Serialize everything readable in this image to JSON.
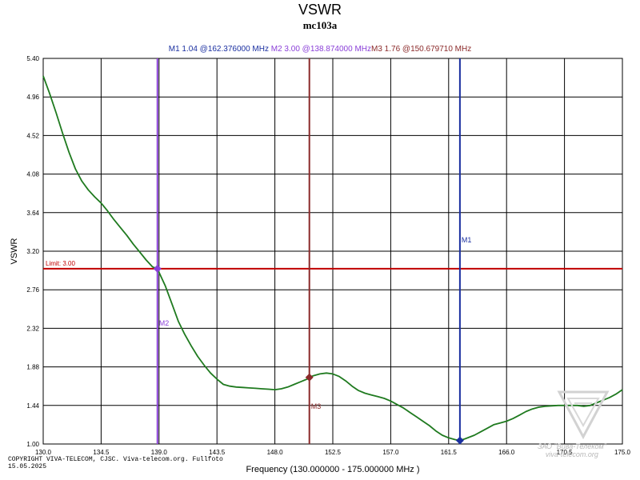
{
  "chart_data": {
    "type": "line",
    "title": "VSWR",
    "subtitle": "mc103a",
    "xlabel": "Frequency (130.000000 - 175.000000 MHz )",
    "ylabel": "VSWR",
    "xlim": [
      130.0,
      175.0
    ],
    "ylim": [
      1.0,
      5.4
    ],
    "x_ticks": [
      130.0,
      134.5,
      139.0,
      143.5,
      148.0,
      152.5,
      157.0,
      161.5,
      166.0,
      170.5,
      175.0
    ],
    "x_tick_labels": [
      "130.0",
      "134.5",
      "139.0",
      "143.5",
      "148.0",
      "152.5",
      "157.0",
      "161.5",
      "166.0",
      "170.5",
      "175.0"
    ],
    "y_ticks": [
      1.0,
      1.44,
      1.88,
      2.32,
      2.76,
      3.2,
      3.64,
      4.08,
      4.52,
      4.96,
      5.4
    ],
    "y_tick_labels": [
      "1.00",
      "1.44",
      "1.88",
      "2.32",
      "2.76",
      "3.20",
      "3.64",
      "4.08",
      "4.52",
      "4.96",
      "5.40"
    ],
    "grid": true,
    "limit": {
      "label": "Limit: 3.00",
      "value": 3.0
    },
    "series": [
      {
        "name": "VSWR",
        "color": "#1f7a1f",
        "x": [
          130.0,
          130.5,
          131.0,
          131.5,
          132.0,
          132.5,
          133.0,
          133.5,
          134.0,
          134.5,
          135.0,
          135.5,
          136.0,
          136.5,
          137.0,
          137.5,
          138.0,
          138.5,
          138.87,
          139.5,
          140.0,
          140.5,
          141.0,
          141.5,
          142.0,
          142.5,
          143.0,
          143.5,
          144.0,
          144.5,
          145.0,
          145.5,
          146.0,
          146.5,
          147.0,
          147.5,
          148.0,
          148.5,
          149.0,
          149.5,
          150.0,
          150.5,
          150.68,
          151.0,
          151.5,
          152.0,
          152.5,
          153.0,
          153.5,
          154.0,
          154.5,
          155.0,
          155.5,
          156.0,
          156.5,
          157.0,
          157.5,
          158.0,
          158.5,
          159.0,
          159.5,
          160.0,
          160.5,
          161.0,
          161.5,
          162.0,
          162.38,
          162.8,
          163.5,
          164.0,
          164.5,
          165.0,
          165.5,
          166.0,
          166.5,
          167.0,
          167.5,
          168.0,
          168.5,
          169.0,
          169.5,
          170.0,
          170.5,
          171.0,
          171.5,
          172.0,
          172.5,
          173.0,
          173.5,
          174.0,
          174.5,
          175.0
        ],
        "values": [
          5.2,
          5.0,
          4.78,
          4.55,
          4.33,
          4.14,
          4.0,
          3.9,
          3.82,
          3.75,
          3.66,
          3.56,
          3.47,
          3.38,
          3.28,
          3.19,
          3.1,
          3.02,
          3.0,
          2.8,
          2.6,
          2.4,
          2.25,
          2.12,
          2.0,
          1.9,
          1.81,
          1.74,
          1.68,
          1.66,
          1.65,
          1.645,
          1.64,
          1.635,
          1.63,
          1.625,
          1.62,
          1.63,
          1.65,
          1.68,
          1.71,
          1.74,
          1.76,
          1.78,
          1.8,
          1.81,
          1.8,
          1.77,
          1.72,
          1.66,
          1.61,
          1.58,
          1.56,
          1.54,
          1.52,
          1.49,
          1.45,
          1.41,
          1.36,
          1.31,
          1.26,
          1.21,
          1.15,
          1.1,
          1.07,
          1.05,
          1.04,
          1.06,
          1.1,
          1.14,
          1.18,
          1.22,
          1.24,
          1.26,
          1.29,
          1.33,
          1.37,
          1.4,
          1.42,
          1.43,
          1.435,
          1.44,
          1.44,
          1.44,
          1.44,
          1.43,
          1.44,
          1.47,
          1.5,
          1.53,
          1.57,
          1.62
        ]
      }
    ],
    "markers": [
      {
        "name": "M1",
        "header": "M1   1.04 @162.376000 MHz",
        "freq": 162.376,
        "vswr": 1.04,
        "label_vswr": 3.3,
        "color": "#1a2fa0"
      },
      {
        "name": "M2",
        "header": "M2   3.00 @138.874000 MHz",
        "freq": 138.874,
        "vswr": 3.0,
        "label_vswr": 2.35,
        "color": "#8a3fd8"
      },
      {
        "name": "M3",
        "header": "M3   1.76 @150.679710 MHz",
        "freq": 150.67971,
        "vswr": 1.76,
        "label_vswr": 1.4,
        "color": "#8b2a2a"
      }
    ]
  },
  "footer": {
    "copyright": "COPYRIGHT VIVA-TELECOM, CJSC. Viva-telecom.org. Fullfoto",
    "date": "15.05.2025",
    "watermark_line1": "ЗАО \"Вива-Телеком\"",
    "watermark_line2": "viva-telecom.org"
  }
}
